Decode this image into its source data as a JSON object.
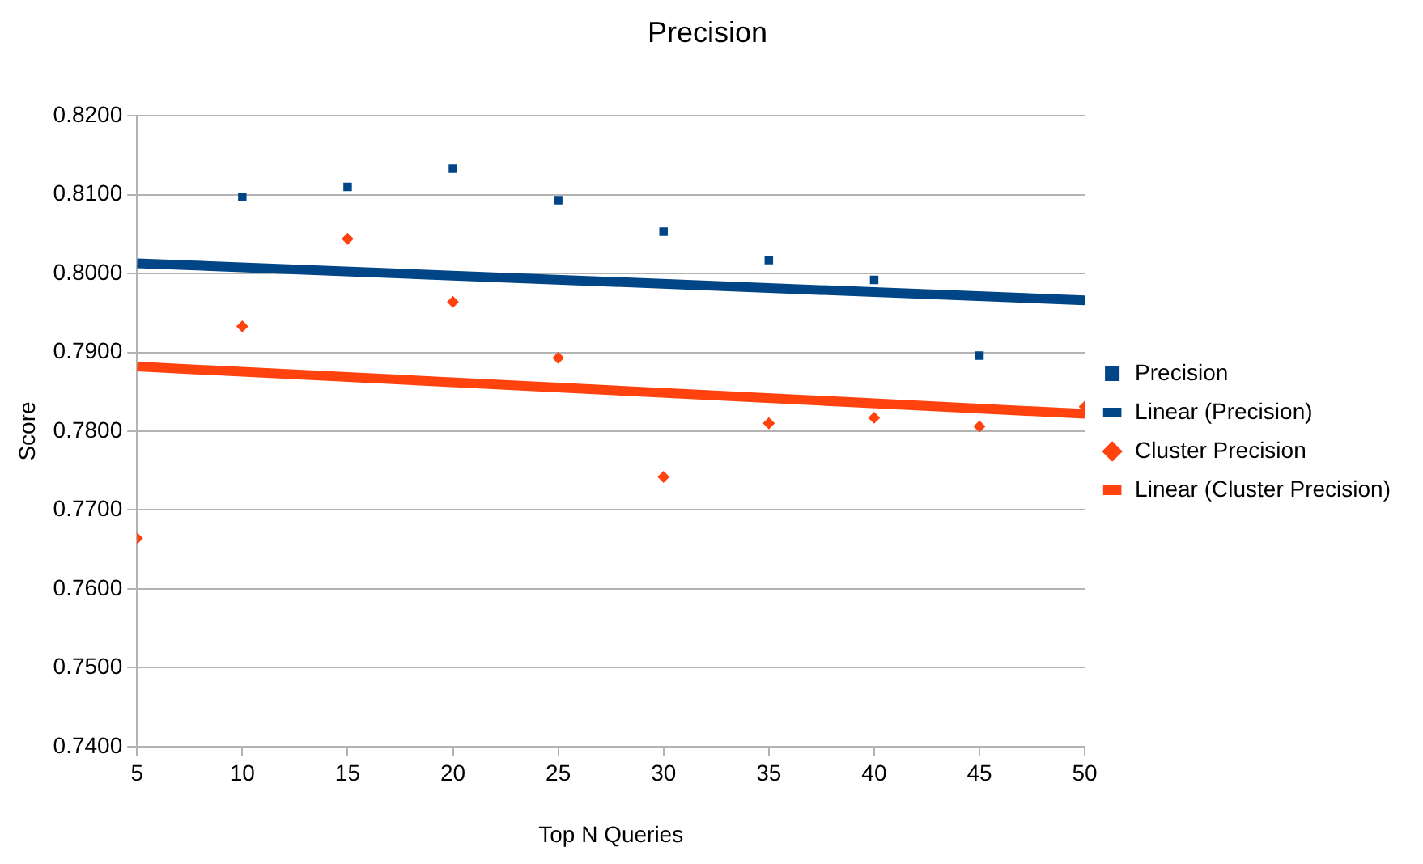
{
  "chart_data": {
    "type": "scatter",
    "title": "Precision",
    "xlabel": "Top N Queries",
    "ylabel": "Score",
    "xlim": [
      5,
      50
    ],
    "xticks": [
      5,
      10,
      15,
      20,
      25,
      30,
      35,
      40,
      45,
      50
    ],
    "ylim": [
      0.74,
      0.82
    ],
    "yticks": [
      {
        "value": 0.74,
        "label": "0.7400"
      },
      {
        "value": 0.75,
        "label": "0.7500"
      },
      {
        "value": 0.76,
        "label": "0.7600"
      },
      {
        "value": 0.77,
        "label": "0.7700"
      },
      {
        "value": 0.78,
        "label": "0.7800"
      },
      {
        "value": 0.79,
        "label": "0.7900"
      },
      {
        "value": 0.8,
        "label": "0.8000"
      },
      {
        "value": 0.81,
        "label": "0.8100"
      },
      {
        "value": 0.82,
        "label": "0.8200"
      }
    ],
    "grid": "y",
    "legend": "right",
    "series": [
      {
        "name": "Precision",
        "type": "scatter",
        "marker": "square",
        "color": "#004586",
        "x": [
          10,
          15,
          20,
          25,
          30,
          35,
          40,
          45
        ],
        "values": [
          0.8097,
          0.811,
          0.8133,
          0.8093,
          0.8053,
          0.8017,
          0.7992,
          0.7896
        ]
      },
      {
        "name": "Linear (Precision)",
        "type": "line",
        "marker": "none",
        "color": "#004586",
        "x": [
          5,
          50
        ],
        "values": [
          0.8013,
          0.7966
        ]
      },
      {
        "name": "Cluster Precision",
        "type": "scatter",
        "marker": "diamond",
        "color": "#ff420e",
        "x": [
          5,
          10,
          15,
          20,
          25,
          30,
          35,
          40,
          45,
          50
        ],
        "values": [
          0.7664,
          0.7933,
          0.8044,
          0.7964,
          0.7893,
          0.7742,
          0.781,
          0.7817,
          0.7806,
          0.7831
        ]
      },
      {
        "name": "Linear (Cluster Precision)",
        "type": "line",
        "marker": "none",
        "color": "#ff420e",
        "x": [
          5,
          50
        ],
        "values": [
          0.7882,
          0.7822
        ]
      }
    ]
  }
}
